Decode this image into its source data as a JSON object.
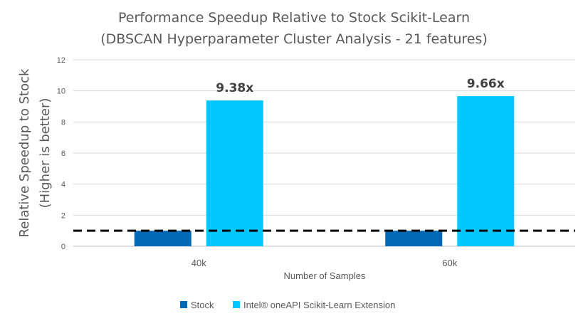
{
  "chart_data": {
    "type": "bar",
    "title": [
      "Performance Speedup Relative to Stock Scikit-Learn",
      "(DBSCAN Hyperparameter Cluster Analysis - 21 features)"
    ],
    "xlabel": "Number of Samples",
    "ylabel": [
      "Relative Speedup to Stock",
      "(Higher is better)"
    ],
    "categories": [
      "40k",
      "60k"
    ],
    "series": [
      {
        "name": "Stock",
        "color": "#0068b5",
        "values": [
          1,
          1
        ],
        "labels": [
          "",
          ""
        ]
      },
      {
        "name": "Intel® oneAPI Scikit-Learn Extension",
        "color": "#00c7fd",
        "values": [
          9.38,
          9.66
        ],
        "labels": [
          "9.38x",
          "9.66x"
        ]
      }
    ],
    "ylim": [
      0,
      12
    ],
    "yticks": [
      0,
      2,
      4,
      6,
      8,
      10,
      12
    ],
    "reference_line": {
      "value": 1,
      "style": "dashed",
      "color": "#000000"
    },
    "grid": true,
    "legend": "bottom"
  }
}
